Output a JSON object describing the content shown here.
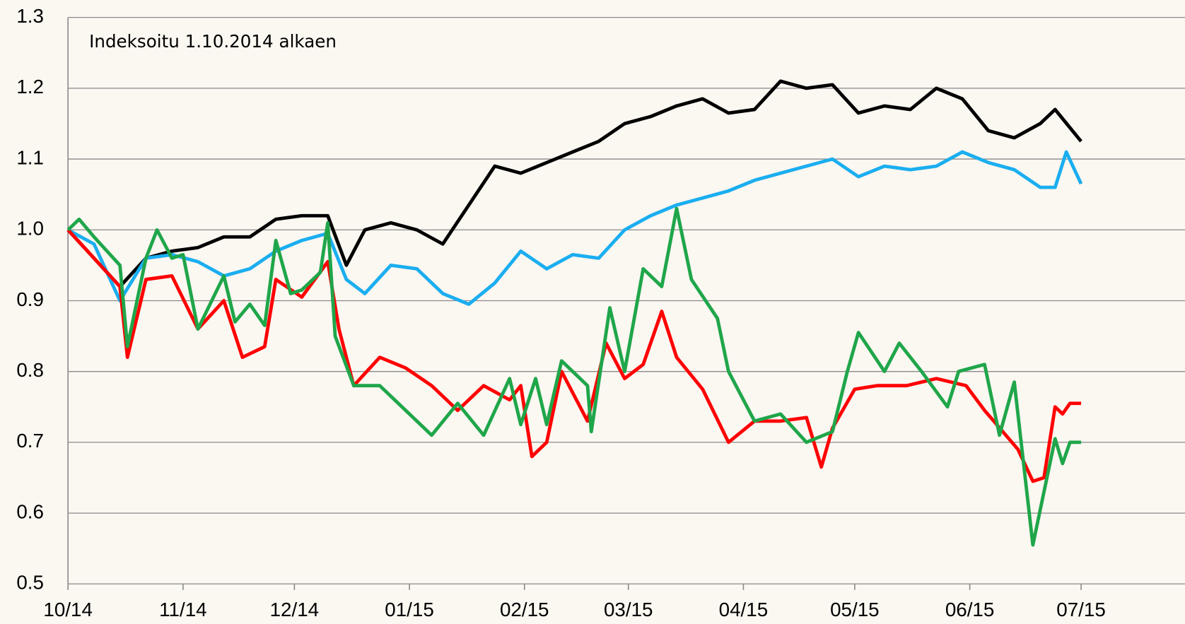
{
  "chart_data": {
    "type": "line",
    "annotation": "Indeksoitu 1.10.2014 alkaen",
    "xlim": [
      0,
      301
    ],
    "xticks": [
      {
        "value": 0,
        "label": "10/14"
      },
      {
        "value": 31,
        "label": "11/14"
      },
      {
        "value": 61,
        "label": "12/14"
      },
      {
        "value": 92,
        "label": "01/15"
      },
      {
        "value": 123,
        "label": "02/15"
      },
      {
        "value": 151,
        "label": "03/15"
      },
      {
        "value": 182,
        "label": "04/15"
      },
      {
        "value": 212,
        "label": "05/15"
      },
      {
        "value": 243,
        "label": "06/15"
      },
      {
        "value": 273,
        "label": "07/15"
      }
    ],
    "ylim": [
      0.5,
      1.3
    ],
    "yticks": [
      0.5,
      0.6,
      0.7,
      0.8,
      0.9,
      {
        "value": 1,
        "label": "1.0"
      },
      1.1,
      1.2,
      1.3
    ],
    "grid": true,
    "series": [
      {
        "color": "#000000",
        "x": [
          0,
          7,
          14,
          21,
          28,
          35,
          42,
          49,
          56,
          63,
          70,
          75,
          80,
          87,
          94,
          101,
          108,
          115,
          122,
          129,
          136,
          143,
          150,
          157,
          164,
          171,
          178,
          185,
          192,
          199,
          206,
          213,
          220,
          227,
          234,
          241,
          248,
          255,
          262,
          266,
          273
        ],
        "values": [
          1.0,
          0.96,
          0.92,
          0.96,
          0.97,
          0.975,
          0.99,
          0.99,
          1.015,
          1.02,
          1.02,
          0.95,
          1.0,
          1.01,
          1.0,
          0.98,
          1.035,
          1.09,
          1.08,
          1.095,
          1.11,
          1.125,
          1.15,
          1.16,
          1.175,
          1.185,
          1.165,
          1.17,
          1.21,
          1.2,
          1.205,
          1.165,
          1.175,
          1.17,
          1.2,
          1.185,
          1.14,
          1.13,
          1.15,
          1.17,
          1.125
        ]
      },
      {
        "color": "#1aaef0",
        "x": [
          0,
          7,
          14,
          21,
          28,
          35,
          42,
          49,
          56,
          63,
          70,
          75,
          80,
          87,
          94,
          101,
          108,
          115,
          122,
          129,
          136,
          143,
          150,
          157,
          164,
          171,
          178,
          185,
          192,
          199,
          206,
          213,
          220,
          227,
          234,
          241,
          248,
          255,
          262,
          266,
          269,
          273
        ],
        "values": [
          1.0,
          0.98,
          0.9,
          0.96,
          0.965,
          0.955,
          0.935,
          0.945,
          0.97,
          0.985,
          0.995,
          0.93,
          0.91,
          0.95,
          0.945,
          0.91,
          0.895,
          0.925,
          0.97,
          0.945,
          0.965,
          0.96,
          1.0,
          1.02,
          1.035,
          1.045,
          1.055,
          1.07,
          1.08,
          1.09,
          1.1,
          1.075,
          1.09,
          1.085,
          1.09,
          1.11,
          1.095,
          1.085,
          1.06,
          1.06,
          1.11,
          1.065
        ]
      },
      {
        "color": "#ff0000",
        "x": [
          0,
          7,
          14,
          16,
          21,
          28,
          35,
          42,
          47,
          53,
          56,
          63,
          70,
          73,
          77,
          84,
          91,
          98,
          105,
          112,
          119,
          122,
          125,
          129,
          133,
          140,
          145,
          150,
          155,
          160,
          164,
          171,
          178,
          185,
          192,
          199,
          203,
          206,
          212,
          218,
          226,
          234,
          242,
          247,
          256,
          260,
          263,
          266,
          268,
          270,
          273
        ],
        "values": [
          1.0,
          0.96,
          0.92,
          0.82,
          0.93,
          0.935,
          0.86,
          0.9,
          0.82,
          0.835,
          0.93,
          0.905,
          0.955,
          0.86,
          0.78,
          0.82,
          0.805,
          0.78,
          0.745,
          0.78,
          0.76,
          0.78,
          0.68,
          0.7,
          0.8,
          0.73,
          0.84,
          0.79,
          0.81,
          0.885,
          0.82,
          0.775,
          0.7,
          0.73,
          0.73,
          0.735,
          0.665,
          0.72,
          0.775,
          0.78,
          0.78,
          0.79,
          0.78,
          0.745,
          0.69,
          0.645,
          0.65,
          0.75,
          0.74,
          0.755,
          0.755
        ]
      },
      {
        "color": "#1fa64a",
        "x": [
          0,
          3,
          7,
          14,
          16,
          21,
          24,
          28,
          31,
          35,
          42,
          45,
          49,
          53,
          56,
          60,
          63,
          68,
          70,
          72,
          77,
          84,
          91,
          98,
          105,
          112,
          119,
          122,
          126,
          129,
          133,
          140,
          141,
          146,
          150,
          155,
          160,
          164,
          168,
          175,
          178,
          185,
          192,
          199,
          206,
          210,
          213,
          220,
          224,
          230,
          237,
          240,
          247,
          251,
          255,
          260,
          266,
          268,
          270,
          273
        ],
        "values": [
          1.0,
          1.015,
          0.99,
          0.95,
          0.835,
          0.96,
          1.0,
          0.96,
          0.965,
          0.86,
          0.935,
          0.87,
          0.895,
          0.865,
          0.985,
          0.91,
          0.915,
          0.94,
          1.01,
          0.85,
          0.78,
          0.78,
          0.745,
          0.71,
          0.755,
          0.71,
          0.79,
          0.725,
          0.79,
          0.725,
          0.815,
          0.78,
          0.715,
          0.89,
          0.8,
          0.945,
          0.92,
          1.03,
          0.93,
          0.875,
          0.8,
          0.73,
          0.74,
          0.7,
          0.715,
          0.8,
          0.855,
          0.8,
          0.84,
          0.8,
          0.75,
          0.8,
          0.81,
          0.71,
          0.785,
          0.555,
          0.705,
          0.67,
          0.7,
          0.7
        ]
      }
    ]
  }
}
